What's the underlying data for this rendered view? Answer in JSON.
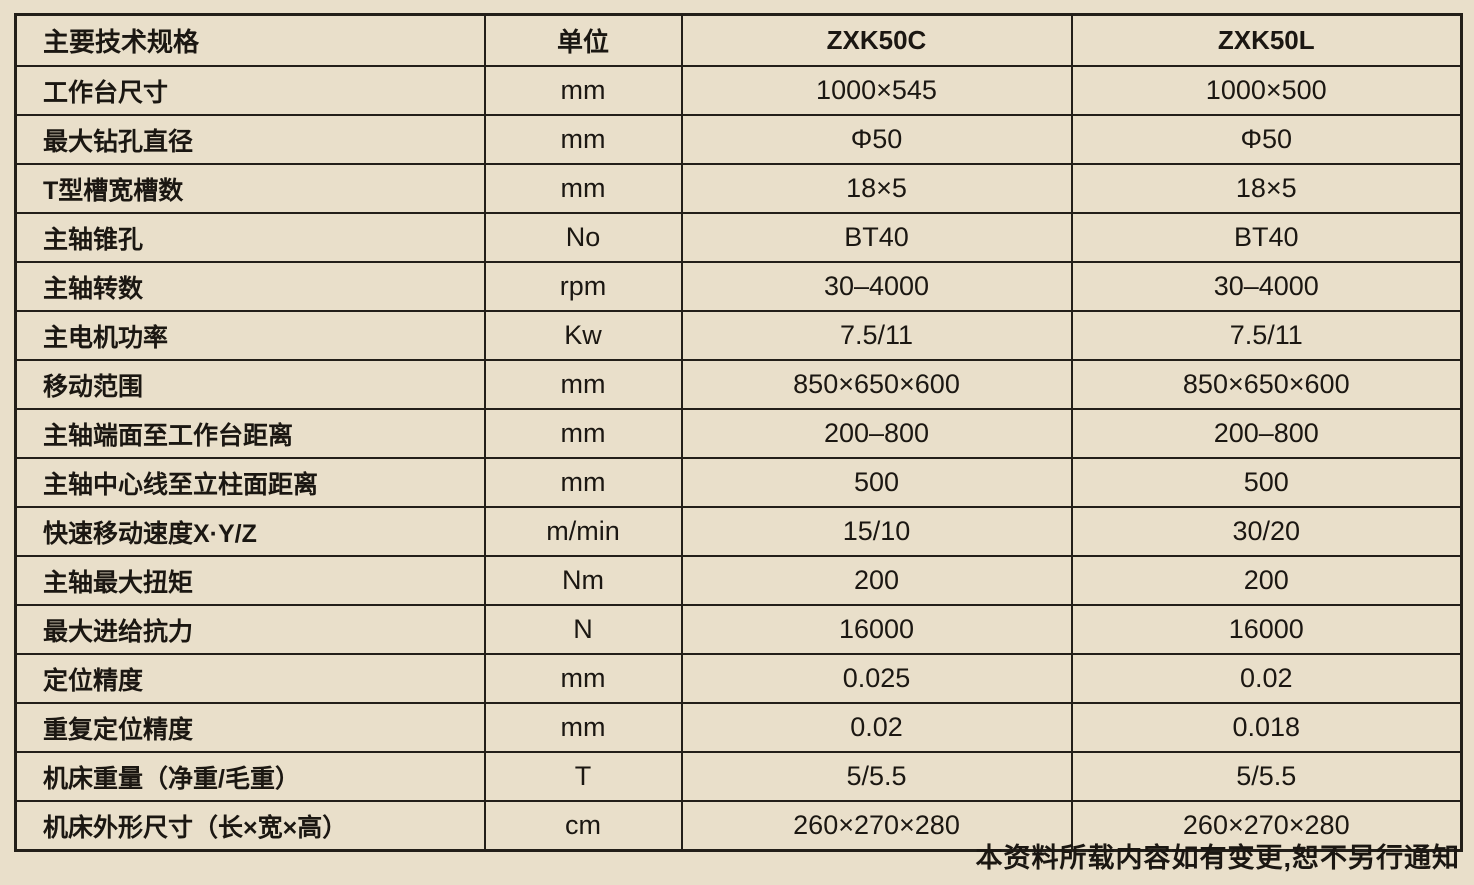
{
  "page": {
    "background_color": "#e9dfca",
    "table_border_color": "#231f19",
    "text_color": "#1b1712",
    "footer_note": "本资料所载内容如有变更,恕不另行通知"
  },
  "table": {
    "columns": [
      "主要技术规格",
      "单位",
      "ZXK50C",
      "ZXK50L"
    ],
    "rows": [
      [
        "工作台尺寸",
        "mm",
        "1000×545",
        "1000×500"
      ],
      [
        "最大钻孔直径",
        "mm",
        "Φ50",
        "Φ50"
      ],
      [
        "T型槽宽槽数",
        "mm",
        "18×5",
        "18×5"
      ],
      [
        "主轴锥孔",
        "No",
        "BT40",
        "BT40"
      ],
      [
        "主轴转数",
        "rpm",
        "30–4000",
        "30–4000"
      ],
      [
        "主电机功率",
        "Kw",
        "7.5/11",
        "7.5/11"
      ],
      [
        "移动范围",
        "mm",
        "850×650×600",
        "850×650×600"
      ],
      [
        "主轴端面至工作台距离",
        "mm",
        "200–800",
        "200–800"
      ],
      [
        "主轴中心线至立柱面距离",
        "mm",
        "500",
        "500"
      ],
      [
        "快速移动速度X·Y/Z",
        "m/min",
        "15/10",
        "30/20"
      ],
      [
        "主轴最大扭矩",
        "Nm",
        "200",
        "200"
      ],
      [
        "最大进给抗力",
        "N",
        "16000",
        "16000"
      ],
      [
        "定位精度",
        "mm",
        "0.025",
        "0.02"
      ],
      [
        "重复定位精度",
        "mm",
        "0.02",
        "0.018"
      ],
      [
        "机床重量（净重/毛重）",
        "T",
        "5/5.5",
        "5/5.5"
      ],
      [
        "机床外形尺寸（长×宽×高）",
        "cm",
        "260×270×280",
        "260×270×280"
      ]
    ]
  }
}
